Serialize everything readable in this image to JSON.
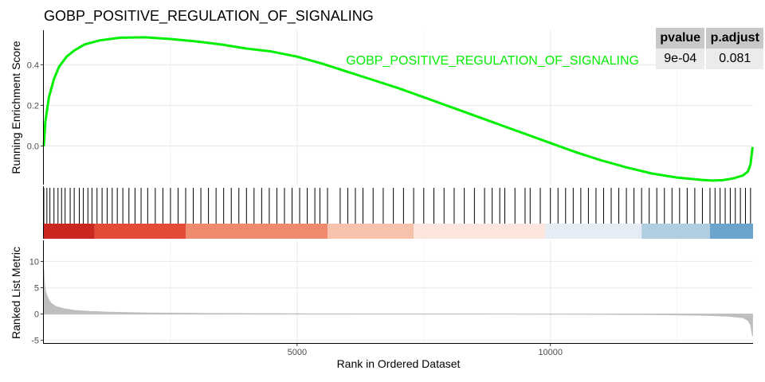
{
  "title": "GOBP_POSITIVE_REGULATION_OF_SIGNALING",
  "stats_table": {
    "headers": [
      "pvalue",
      "p.adjust"
    ],
    "values": [
      "9e-04",
      "0.081"
    ]
  },
  "colors": {
    "curve": "#00ee00",
    "hit_line": "#000000",
    "metric_fill": "#bebebe",
    "grid": "#ebebeb",
    "header_bg": "#c8c8c8",
    "cell_bg": "#ebebeb",
    "heat_bands": [
      "#c9271f",
      "#e24b35",
      "#ef8a6e",
      "#f7c2ab",
      "#fbe5dc",
      "#e6ecf6",
      "#b1cde0",
      "#6ba5ce",
      "#2e75b2"
    ]
  },
  "chart_data": [
    {
      "type": "line",
      "panel": "running-enrichment-score",
      "title": "GOBP_POSITIVE_REGULATION_OF_SIGNALING",
      "ylabel": "Running Enrichment Score",
      "xlabel": "",
      "series": [
        {
          "name": "GOBP_POSITIVE_REGULATION_OF_SIGNALING",
          "x": [
            0,
            30,
            100,
            200,
            300,
            450,
            600,
            800,
            1100,
            1500,
            2000,
            2500,
            3000,
            3500,
            4000,
            4500,
            5000,
            5500,
            6000,
            6500,
            7000,
            7500,
            8000,
            8500,
            9000,
            9500,
            10000,
            10500,
            11000,
            11500,
            12000,
            12500,
            13000,
            13200,
            13400,
            13600,
            13800,
            13900,
            13950,
            13990
          ],
          "y": [
            0.0,
            0.12,
            0.24,
            0.33,
            0.39,
            0.44,
            0.47,
            0.5,
            0.52,
            0.533,
            0.535,
            0.527,
            0.515,
            0.5,
            0.48,
            0.465,
            0.44,
            0.405,
            0.365,
            0.325,
            0.285,
            0.24,
            0.195,
            0.15,
            0.105,
            0.06,
            0.015,
            -0.03,
            -0.07,
            -0.105,
            -0.135,
            -0.155,
            -0.167,
            -0.17,
            -0.168,
            -0.16,
            -0.145,
            -0.125,
            -0.09,
            -0.005
          ]
        }
      ],
      "xlim": [
        0,
        14000
      ],
      "ylim": [
        -0.19,
        0.57
      ],
      "yticks": [
        0.0,
        0.2,
        0.4
      ],
      "ytick_labels": [
        "0.0",
        "0.2",
        "0.4"
      ],
      "xticks": [
        5000,
        10000
      ],
      "grid": true,
      "legend_position": "top-right"
    },
    {
      "type": "heatmap",
      "panel": "gene-set-hits",
      "hit_ranks": [
        0,
        60,
        120,
        200,
        280,
        350,
        420,
        520,
        600,
        700,
        780,
        870,
        950,
        1050,
        1150,
        1250,
        1350,
        1450,
        1560,
        1680,
        1800,
        1920,
        2050,
        2200,
        2350,
        2500,
        2650,
        2800,
        2950,
        3100,
        3250,
        3400,
        3550,
        3700,
        3850,
        4000,
        4150,
        4300,
        4450,
        4600,
        4750,
        4900,
        5050,
        5200,
        5350,
        5450,
        5600,
        5850,
        6000,
        6150,
        6300,
        6500,
        6700,
        6900,
        7100,
        7300,
        7500,
        7700,
        7900,
        8100,
        8300,
        8500,
        8700,
        8850,
        9000,
        9100,
        9300,
        9500,
        9600,
        9800,
        10000,
        10150,
        10300,
        10450,
        10600,
        10750,
        10900,
        11050,
        11200,
        11350,
        11500,
        11650,
        11800,
        11950,
        12100,
        12250,
        12400,
        12550,
        12700,
        12850,
        13000,
        13150,
        13250,
        13350,
        13450,
        13550,
        13650,
        13750,
        13850,
        13950
      ],
      "band_edges": [
        0,
        1000,
        2800,
        5600,
        7300,
        9900,
        11800,
        13150,
        14000
      ]
    },
    {
      "type": "area",
      "panel": "ranked-list-metric",
      "ylabel": "Ranked List Metric",
      "xlabel": "Rank in Ordered Dataset",
      "x": [
        0,
        5,
        15,
        30,
        60,
        100,
        150,
        250,
        400,
        600,
        900,
        1300,
        2000,
        3000,
        5000,
        7000,
        8000,
        9000,
        10000,
        11000,
        12000,
        13000,
        13500,
        13800,
        13900,
        13950,
        13990
      ],
      "values": [
        8.5,
        7.0,
        5.5,
        4.5,
        3.5,
        2.7,
        2.0,
        1.4,
        1.0,
        0.7,
        0.5,
        0.35,
        0.2,
        0.12,
        0.05,
        0.02,
        0.01,
        0.0,
        -0.02,
        -0.05,
        -0.1,
        -0.22,
        -0.4,
        -0.7,
        -1.2,
        -2.0,
        -4.2
      ],
      "xlim": [
        0,
        14000
      ],
      "ylim": [
        -5.5,
        14
      ],
      "yticks": [
        -5,
        0,
        5,
        10
      ],
      "ytick_labels": [
        "-5",
        "0",
        "5",
        "10"
      ],
      "xticks": [
        5000,
        10000
      ],
      "xtick_labels": [
        "5000",
        "10000"
      ],
      "grid": true
    }
  ]
}
